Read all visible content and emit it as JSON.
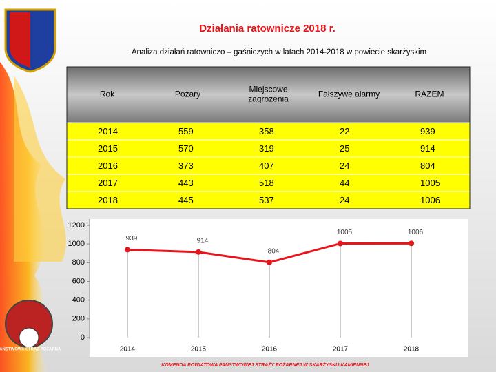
{
  "header": {
    "title": "Działania ratownicze 2018 r.",
    "subtitle": "Analiza działań ratowniczo – gaśniczych w latach 2014-2018 w  powiecie skarżyskim"
  },
  "table": {
    "columns": [
      "Rok",
      "Pożary",
      "Miejscowe zagrożenia",
      "Fałszywe alarmy",
      "RAZEM"
    ],
    "rows": [
      [
        "2014",
        "559",
        "358",
        "22",
        "939"
      ],
      [
        "2015",
        "570",
        "319",
        "25",
        "914"
      ],
      [
        "2016",
        "373",
        "407",
        "24",
        "804"
      ],
      [
        "2017",
        "443",
        "518",
        "44",
        "1005"
      ],
      [
        "2018",
        "445",
        "537",
        "24",
        "1006"
      ]
    ]
  },
  "chart_data": {
    "type": "line",
    "categories": [
      "2014",
      "2015",
      "2016",
      "2017",
      "2018"
    ],
    "values": [
      939,
      914,
      804,
      1005,
      1006
    ],
    "color": "#e8141a",
    "ylim": [
      0,
      1200
    ],
    "yticks": [
      0,
      200,
      400,
      600,
      800,
      1000,
      1200
    ]
  },
  "badge": "PAŃSTWOWA STRAŻ POŻARNA",
  "footer": "KOMENDA POWIATOWA PAŃSTWOWEJ STRAŻY POŻARNEJ W SKARŻYSKU-KAMIENNEJ"
}
